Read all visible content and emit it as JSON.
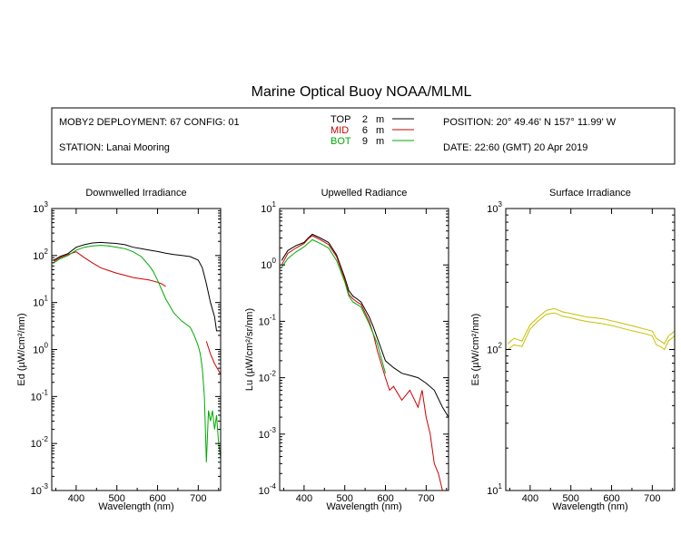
{
  "title": "Marine Optical Buoy NOAA/MLML",
  "header": {
    "deployment": "MOBY2 DEPLOYMENT: 67 CONFIG: 01",
    "station": "STATION: Lanai Mooring",
    "position": "POSITION: 20° 49.46' N   157° 11.99' W",
    "date": "DATE: 22:60 (GMT) 20 Apr 2019",
    "legend": [
      {
        "name": "TOP",
        "depth": "2",
        "unit": "m",
        "color": "#000000"
      },
      {
        "name": "MID",
        "depth": "6",
        "unit": "m",
        "color": "#cc0000"
      },
      {
        "name": "BOT",
        "depth": "9",
        "unit": "m",
        "color": "#00aa00"
      }
    ]
  },
  "chart_data": [
    {
      "type": "line",
      "title": "Downwelled Irradiance",
      "xlabel": "Wavelength (nm)",
      "ylabel": "Ed  (µW/cm²/nm)",
      "xlim": [
        340,
        755
      ],
      "ylim_log10": [
        -3,
        3
      ],
      "yscale": "log",
      "xticks": [
        "400",
        "500",
        "600",
        "700"
      ],
      "yticks": [
        {
          "base": "10",
          "exp": "-3"
        },
        {
          "base": "10",
          "exp": "-2"
        },
        {
          "base": "10",
          "exp": "-1"
        },
        {
          "base": "10",
          "exp": "0"
        },
        {
          "base": "10",
          "exp": "1"
        },
        {
          "base": "10",
          "exp": "2"
        },
        {
          "base": "10",
          "exp": "3"
        }
      ],
      "series": [
        {
          "color": "#000000",
          "x": [
            345,
            360,
            380,
            400,
            420,
            440,
            460,
            480,
            500,
            520,
            540,
            560,
            580,
            600,
            620,
            640,
            660,
            680,
            700,
            710,
            720,
            730,
            740,
            745,
            755
          ],
          "y": [
            80,
            95,
            110,
            150,
            170,
            185,
            190,
            185,
            180,
            170,
            150,
            140,
            130,
            122,
            112,
            105,
            100,
            95,
            80,
            55,
            25,
            10,
            5,
            2.5,
            2.5
          ]
        },
        {
          "color": "#cc0000",
          "x": [
            345,
            360,
            380,
            400,
            420,
            440,
            460,
            480,
            500,
            520,
            540,
            560,
            580,
            600,
            610,
            620
          ],
          "y": [
            75,
            90,
            105,
            120,
            90,
            70,
            55,
            48,
            42,
            38,
            34,
            32,
            30,
            27,
            25,
            22
          ]
        },
        {
          "color": "#cc0000",
          "x": [
            720,
            730,
            740,
            755
          ],
          "y": [
            1.5,
            0.8,
            0.5,
            0.3
          ]
        },
        {
          "color": "#00aa00",
          "x": [
            345,
            360,
            380,
            400,
            420,
            440,
            460,
            480,
            500,
            520,
            540,
            560,
            580,
            590,
            600,
            620,
            640,
            660,
            680,
            690,
            700,
            705,
            710,
            715,
            720,
            725,
            730,
            735,
            740,
            745,
            750,
            755
          ],
          "y": [
            70,
            85,
            100,
            130,
            150,
            160,
            165,
            160,
            150,
            140,
            120,
            95,
            60,
            45,
            30,
            12,
            6,
            4,
            3,
            2,
            1.2,
            0.8,
            0.4,
            0.1,
            0.004,
            0.05,
            0.03,
            0.05,
            0.02,
            0.04,
            0.01,
            0.005
          ]
        }
      ]
    },
    {
      "type": "line",
      "title": "Upwelled Radiance",
      "xlabel": "Wavelength (nm)",
      "ylabel": "Lu  (µW/cm²/sr/nm)",
      "xlim": [
        340,
        755
      ],
      "ylim_log10": [
        -4,
        1
      ],
      "yscale": "log",
      "xticks": [
        "400",
        "500",
        "600",
        "700"
      ],
      "yticks": [
        {
          "base": "10",
          "exp": "-4"
        },
        {
          "base": "10",
          "exp": "-3"
        },
        {
          "base": "10",
          "exp": "-2"
        },
        {
          "base": "10",
          "exp": "-1"
        },
        {
          "base": "10",
          "exp": "0"
        },
        {
          "base": "10",
          "exp": "1"
        }
      ],
      "series": [
        {
          "color": "#000000",
          "x": [
            345,
            360,
            380,
            400,
            410,
            420,
            440,
            460,
            480,
            500,
            510,
            520,
            530,
            540,
            560,
            570,
            580,
            600,
            620,
            640,
            660,
            680,
            700,
            720,
            740,
            755
          ],
          "y": [
            1.2,
            1.8,
            2.2,
            2.5,
            3.0,
            3.5,
            3.0,
            2.5,
            1.5,
            0.6,
            0.35,
            0.28,
            0.25,
            0.22,
            0.12,
            0.08,
            0.05,
            0.02,
            0.015,
            0.012,
            0.011,
            0.01,
            0.008,
            0.006,
            0.003,
            0.002
          ]
        },
        {
          "color": "#cc0000",
          "x": [
            345,
            360,
            380,
            400,
            410,
            420,
            440,
            460,
            480,
            500,
            510,
            520,
            530,
            540,
            560,
            570,
            580,
            600,
            610,
            620,
            640,
            660,
            680,
            690,
            700,
            710,
            720,
            730,
            740,
            755
          ],
          "y": [
            1.0,
            1.6,
            2.0,
            2.4,
            2.9,
            3.3,
            2.8,
            2.3,
            1.4,
            0.55,
            0.3,
            0.25,
            0.22,
            0.2,
            0.1,
            0.06,
            0.03,
            0.01,
            0.006,
            0.007,
            0.004,
            0.006,
            0.003,
            0.006,
            0.002,
            0.001,
            0.0003,
            0.0002,
            0.0001,
            0.0001
          ]
        },
        {
          "color": "#00aa00",
          "x": [
            345,
            360,
            380,
            400,
            420,
            440,
            460,
            480,
            500,
            510,
            520,
            540,
            560,
            580,
            600
          ],
          "y": [
            0.9,
            1.3,
            1.7,
            2.1,
            2.8,
            2.4,
            2.0,
            1.2,
            0.5,
            0.28,
            0.22,
            0.18,
            0.09,
            0.04,
            0.012
          ]
        }
      ]
    },
    {
      "type": "line",
      "title": "Surface Irradiance",
      "xlabel": "Wavelength (nm)",
      "ylabel": "Es  (µW/cm²/nm)",
      "xlim": [
        340,
        755
      ],
      "ylim_log10": [
        1,
        3
      ],
      "yscale": "log",
      "xticks": [
        "400",
        "500",
        "600",
        "700"
      ],
      "yticks": [
        {
          "base": "10",
          "exp": "1"
        },
        {
          "base": "10",
          "exp": "2"
        },
        {
          "base": "10",
          "exp": "3"
        }
      ],
      "series": [
        {
          "color": "#c8c000",
          "x": [
            345,
            360,
            380,
            400,
            420,
            440,
            460,
            480,
            500,
            520,
            540,
            560,
            580,
            600,
            620,
            640,
            660,
            680,
            700,
            710,
            720,
            730,
            740,
            755
          ],
          "y": [
            110,
            120,
            115,
            150,
            170,
            190,
            195,
            185,
            180,
            175,
            170,
            168,
            165,
            160,
            155,
            150,
            145,
            140,
            135,
            120,
            115,
            110,
            125,
            135
          ]
        },
        {
          "color": "#c8c000",
          "x": [
            345,
            360,
            380,
            400,
            420,
            440,
            460,
            480,
            500,
            520,
            540,
            560,
            580,
            600,
            620,
            640,
            660,
            680,
            700,
            710,
            720,
            730,
            740,
            755
          ],
          "y": [
            100,
            108,
            105,
            140,
            160,
            178,
            182,
            172,
            168,
            162,
            158,
            155,
            152,
            148,
            143,
            138,
            134,
            130,
            125,
            108,
            105,
            100,
            115,
            125
          ]
        }
      ]
    }
  ]
}
